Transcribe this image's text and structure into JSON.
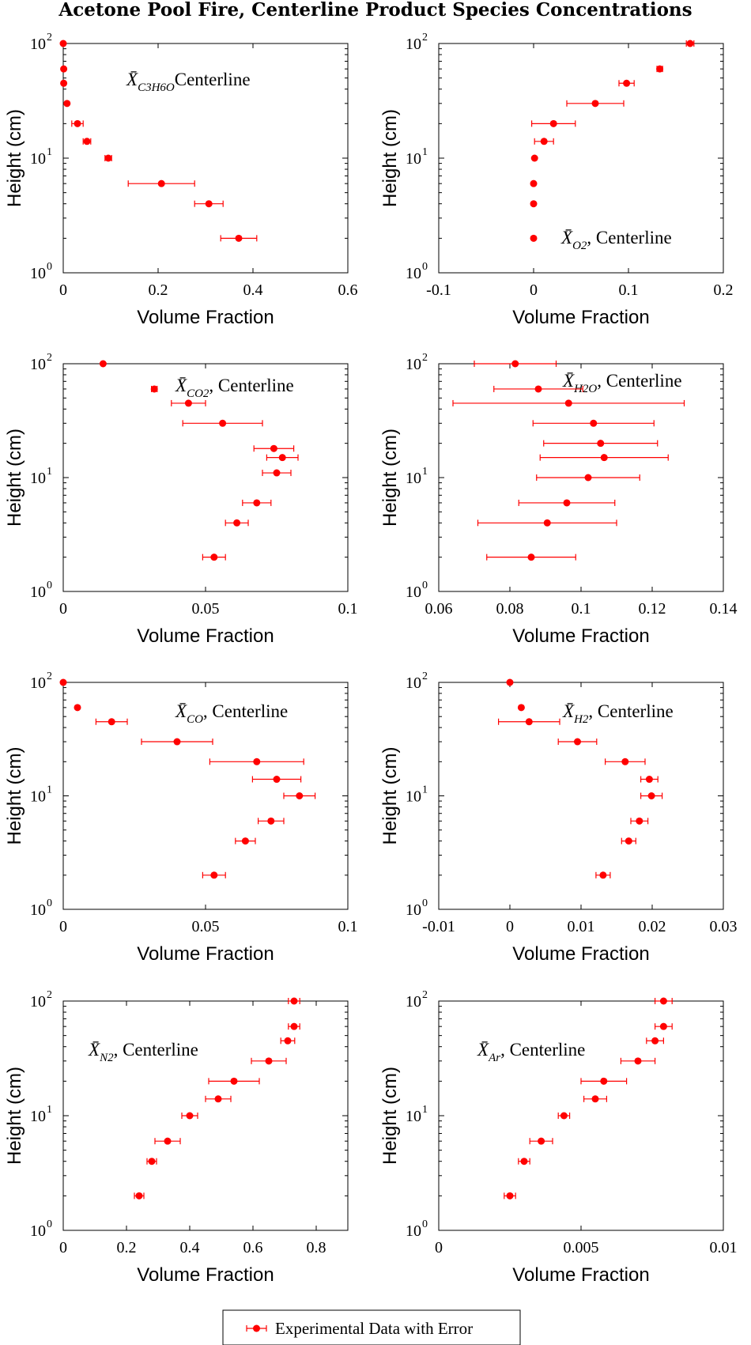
{
  "figure_title": "Acetone Pool Fire, Centerline Product Species Concentrations",
  "legend": {
    "label": "Experimental Data with Error"
  },
  "colors": {
    "marker": "#ff0000",
    "axes": "#000000",
    "background": "#ffffff"
  },
  "chart_data": [
    {
      "type": "scatter",
      "species": "C3H6O",
      "annotation": {
        "symbol": "X̄",
        "subscript": "C3H6O",
        "suffix": "Centerline"
      },
      "xlabel": "Volume Fraction",
      "ylabel": "Height (cm)",
      "xlim": [
        0,
        0.6
      ],
      "ylim": [
        1,
        100
      ],
      "yscale": "log",
      "xticks": [
        "0",
        "0.2",
        "0.4",
        "0.6"
      ],
      "points": [
        {
          "x": 0.0,
          "y": 100,
          "err": 0.0
        },
        {
          "x": 0.001,
          "y": 60,
          "err": 0.0
        },
        {
          "x": 0.001,
          "y": 45,
          "err": 0.0
        },
        {
          "x": 0.008,
          "y": 30,
          "err": 0.0
        },
        {
          "x": 0.03,
          "y": 20,
          "err": 0.012
        },
        {
          "x": 0.05,
          "y": 14,
          "err": 0.008
        },
        {
          "x": 0.095,
          "y": 10,
          "err": 0.007
        },
        {
          "x": 0.207,
          "y": 6,
          "err": 0.07
        },
        {
          "x": 0.307,
          "y": 4,
          "err": 0.03
        },
        {
          "x": 0.37,
          "y": 2,
          "err": 0.038
        }
      ]
    },
    {
      "type": "scatter",
      "species": "O2",
      "annotation": {
        "symbol": "X̄",
        "subscript": "O2",
        "suffix": ", Centerline"
      },
      "xlabel": "Volume Fraction",
      "ylabel": "Height (cm)",
      "xlim": [
        -0.1,
        0.2
      ],
      "ylim": [
        1,
        100
      ],
      "yscale": "log",
      "xticks": [
        "-0.1",
        "0",
        "0.1",
        "0.2"
      ],
      "points": [
        {
          "x": 0.165,
          "y": 100,
          "err": 0.004
        },
        {
          "x": 0.133,
          "y": 60,
          "err": 0.003
        },
        {
          "x": 0.098,
          "y": 45,
          "err": 0.008
        },
        {
          "x": 0.065,
          "y": 30,
          "err": 0.03
        },
        {
          "x": 0.021,
          "y": 20,
          "err": 0.023
        },
        {
          "x": 0.011,
          "y": 14,
          "err": 0.01
        },
        {
          "x": 0.001,
          "y": 10,
          "err": 0.0
        },
        {
          "x": 0.0,
          "y": 6,
          "err": 0.0
        },
        {
          "x": 0.0,
          "y": 4,
          "err": 0.0
        },
        {
          "x": 0.0,
          "y": 2,
          "err": 0.0
        }
      ]
    },
    {
      "type": "scatter",
      "species": "CO2",
      "annotation": {
        "symbol": "X̄",
        "subscript": "CO2",
        "suffix": ", Centerline"
      },
      "xlabel": "Volume Fraction",
      "ylabel": "Height (cm)",
      "xlim": [
        0,
        0.1
      ],
      "ylim": [
        1,
        100
      ],
      "yscale": "log",
      "xticks": [
        "0",
        "0.05",
        "0.1"
      ],
      "points": [
        {
          "x": 0.014,
          "y": 100,
          "err": 0.0
        },
        {
          "x": 0.032,
          "y": 60,
          "err": 0.001
        },
        {
          "x": 0.044,
          "y": 45,
          "err": 0.006
        },
        {
          "x": 0.056,
          "y": 30,
          "err": 0.014
        },
        {
          "x": 0.074,
          "y": 18,
          "err": 0.007
        },
        {
          "x": 0.077,
          "y": 15,
          "err": 0.0055
        },
        {
          "x": 0.075,
          "y": 11,
          "err": 0.005
        },
        {
          "x": 0.068,
          "y": 6,
          "err": 0.005
        },
        {
          "x": 0.061,
          "y": 4,
          "err": 0.004
        },
        {
          "x": 0.053,
          "y": 2,
          "err": 0.004
        }
      ]
    },
    {
      "type": "scatter",
      "species": "H2O",
      "annotation": {
        "symbol": "X̄",
        "subscript": "H2O",
        "suffix": ", Centerline"
      },
      "xlabel": "Volume Fraction",
      "ylabel": "Height (cm)",
      "xlim": [
        0.06,
        0.14
      ],
      "ylim": [
        1,
        100
      ],
      "yscale": "log",
      "xticks": [
        "0.06",
        "0.08",
        "0.1",
        "0.12",
        "0.14"
      ],
      "points": [
        {
          "x": 0.0815,
          "y": 100,
          "err": 0.0115
        },
        {
          "x": 0.088,
          "y": 60,
          "err": 0.0125
        },
        {
          "x": 0.0965,
          "y": 45,
          "err": 0.0325
        },
        {
          "x": 0.1035,
          "y": 30,
          "err": 0.017
        },
        {
          "x": 0.1055,
          "y": 20,
          "err": 0.016
        },
        {
          "x": 0.1065,
          "y": 15,
          "err": 0.018
        },
        {
          "x": 0.102,
          "y": 10,
          "err": 0.0145
        },
        {
          "x": 0.096,
          "y": 6,
          "err": 0.0135
        },
        {
          "x": 0.0905,
          "y": 4,
          "err": 0.0195
        },
        {
          "x": 0.086,
          "y": 2,
          "err": 0.0125
        }
      ]
    },
    {
      "type": "scatter",
      "species": "CO",
      "annotation": {
        "symbol": "X̄",
        "subscript": "CO",
        "suffix": ", Centerline"
      },
      "xlabel": "Volume Fraction",
      "ylabel": "Height (cm)",
      "xlim": [
        0,
        0.1
      ],
      "ylim": [
        1,
        100
      ],
      "yscale": "log",
      "xticks": [
        "0",
        "0.05",
        "0.1"
      ],
      "points": [
        {
          "x": 0.0,
          "y": 100,
          "err": 0.0
        },
        {
          "x": 0.005,
          "y": 60,
          "err": 0.0
        },
        {
          "x": 0.017,
          "y": 45,
          "err": 0.0055
        },
        {
          "x": 0.04,
          "y": 30,
          "err": 0.0125
        },
        {
          "x": 0.068,
          "y": 20,
          "err": 0.0165
        },
        {
          "x": 0.075,
          "y": 14,
          "err": 0.0085
        },
        {
          "x": 0.083,
          "y": 10,
          "err": 0.0055
        },
        {
          "x": 0.073,
          "y": 6,
          "err": 0.0045
        },
        {
          "x": 0.064,
          "y": 4,
          "err": 0.0035
        },
        {
          "x": 0.053,
          "y": 2,
          "err": 0.004
        }
      ]
    },
    {
      "type": "scatter",
      "species": "H2",
      "annotation": {
        "symbol": "X̄",
        "subscript": "H2",
        "suffix": ", Centerline"
      },
      "xlabel": "Volume Fraction",
      "ylabel": "Height (cm)",
      "xlim": [
        -0.01,
        0.03
      ],
      "ylim": [
        1,
        100
      ],
      "yscale": "log",
      "xticks": [
        "-0.01",
        "0",
        "0.01",
        "0.02",
        "0.03"
      ],
      "points": [
        {
          "x": 0.0,
          "y": 100,
          "err": 0.0
        },
        {
          "x": 0.0016,
          "y": 60,
          "err": 0.0
        },
        {
          "x": 0.0027,
          "y": 45,
          "err": 0.0043
        },
        {
          "x": 0.0095,
          "y": 30,
          "err": 0.0027
        },
        {
          "x": 0.0162,
          "y": 20,
          "err": 0.0028
        },
        {
          "x": 0.0196,
          "y": 14,
          "err": 0.0012
        },
        {
          "x": 0.0199,
          "y": 10,
          "err": 0.0015
        },
        {
          "x": 0.0182,
          "y": 6,
          "err": 0.0012
        },
        {
          "x": 0.0167,
          "y": 4,
          "err": 0.001
        },
        {
          "x": 0.0131,
          "y": 2,
          "err": 0.001
        }
      ]
    },
    {
      "type": "scatter",
      "species": "N2",
      "annotation": {
        "symbol": "X̄",
        "subscript": "N2",
        "suffix": ", Centerline"
      },
      "xlabel": "Volume Fraction",
      "ylabel": "Height (cm)",
      "xlim": [
        0,
        0.9
      ],
      "ylim": [
        1,
        100
      ],
      "yscale": "log",
      "xticks": [
        "0",
        "0.2",
        "0.4",
        "0.6",
        "0.8"
      ],
      "points": [
        {
          "x": 0.73,
          "y": 100,
          "err": 0.018
        },
        {
          "x": 0.73,
          "y": 60,
          "err": 0.018
        },
        {
          "x": 0.71,
          "y": 45,
          "err": 0.022
        },
        {
          "x": 0.65,
          "y": 30,
          "err": 0.055
        },
        {
          "x": 0.54,
          "y": 20,
          "err": 0.08
        },
        {
          "x": 0.49,
          "y": 14,
          "err": 0.04
        },
        {
          "x": 0.4,
          "y": 10,
          "err": 0.025
        },
        {
          "x": 0.33,
          "y": 6,
          "err": 0.04
        },
        {
          "x": 0.28,
          "y": 4,
          "err": 0.015
        },
        {
          "x": 0.24,
          "y": 2,
          "err": 0.015
        }
      ]
    },
    {
      "type": "scatter",
      "species": "Ar",
      "annotation": {
        "symbol": "X̄",
        "subscript": "Ar",
        "suffix": ", Centerline"
      },
      "xlabel": "Volume Fraction",
      "ylabel": "Height (cm)",
      "xlim": [
        0,
        0.01
      ],
      "ylim": [
        1,
        100
      ],
      "yscale": "log",
      "xticks": [
        "0",
        "0.005",
        "0.01"
      ],
      "points": [
        {
          "x": 0.0079,
          "y": 100,
          "err": 0.0003
        },
        {
          "x": 0.0079,
          "y": 60,
          "err": 0.0003
        },
        {
          "x": 0.0076,
          "y": 45,
          "err": 0.0003
        },
        {
          "x": 0.007,
          "y": 30,
          "err": 0.0006
        },
        {
          "x": 0.0058,
          "y": 20,
          "err": 0.0008
        },
        {
          "x": 0.0055,
          "y": 14,
          "err": 0.0004
        },
        {
          "x": 0.0044,
          "y": 10,
          "err": 0.0002
        },
        {
          "x": 0.0036,
          "y": 6,
          "err": 0.0004
        },
        {
          "x": 0.003,
          "y": 4,
          "err": 0.0002
        },
        {
          "x": 0.0025,
          "y": 2,
          "err": 0.0002
        }
      ]
    }
  ]
}
